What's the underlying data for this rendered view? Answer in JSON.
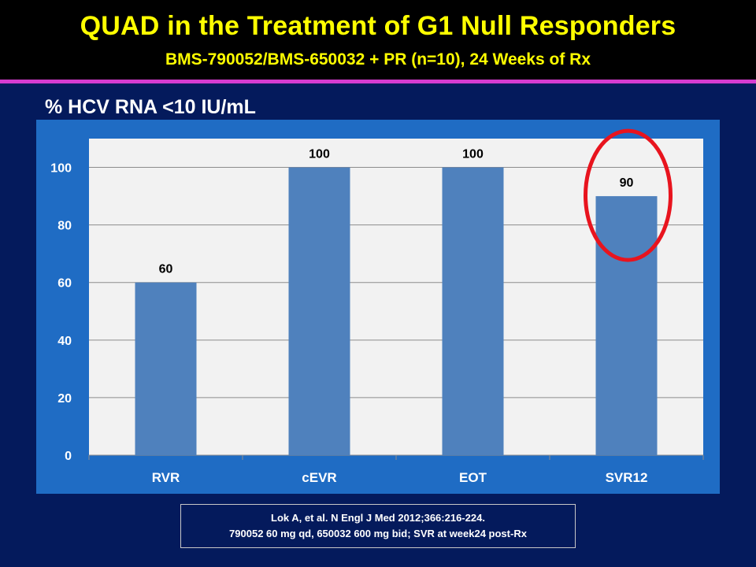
{
  "slide": {
    "title": "QUAD in the Treatment of G1 Null Responders",
    "subtitle": "BMS-790052/BMS-650032 + PR (n=10), 24 Weeks of Rx",
    "y_label": "% HCV RNA <10 IU/mL",
    "citation_line1": "Lok A, et al. N Engl J Med 2012;366:216-224.",
    "citation_line2": "790052 60 mg qd, 650032 600 mg bid; SVR at week24 post-Rx"
  },
  "colors": {
    "title": "#ffff00",
    "background": "#041a5c",
    "panel": "#1f6cc4",
    "plot_area": "#f2f2f2",
    "bar": "#4f81bd",
    "highlight_ring": "#e8141e"
  },
  "chart_data": {
    "type": "bar",
    "title": "",
    "xlabel": "",
    "ylabel": "% HCV RNA <10 IU/mL",
    "categories": [
      "RVR",
      "cEVR",
      "EOT",
      "SVR12"
    ],
    "values": [
      60,
      100,
      100,
      90
    ],
    "data_labels": [
      "60",
      "100",
      "100",
      "90"
    ],
    "ylim": [
      0,
      110
    ],
    "yticks": [
      0,
      20,
      40,
      60,
      80,
      100
    ],
    "grid": true,
    "legend": "none",
    "highlighted_category": "SVR12"
  }
}
